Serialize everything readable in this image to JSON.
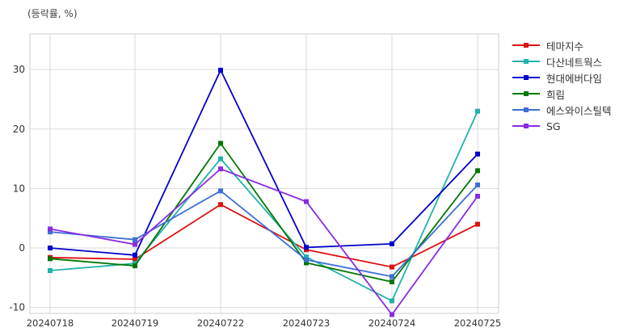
{
  "unit_label": "(등락률, %)",
  "chart_data": {
    "type": "line",
    "x": [
      "20240718",
      "20240719",
      "20240722",
      "20240723",
      "20240724",
      "20240725"
    ],
    "ylim": [
      -11,
      36
    ],
    "yticks": [
      -10,
      0,
      10,
      20,
      30
    ],
    "grid": true,
    "legend_position": "right",
    "series": [
      {
        "name": "테마지수",
        "color": "#dd1111",
        "values": [
          -1.6,
          -1.9,
          7.3,
          -0.3,
          -3.2,
          4.0
        ]
      },
      {
        "name": "다산네트웍스",
        "color": "#20b2aa",
        "values": [
          -3.8,
          -2.6,
          15.0,
          -1.5,
          -8.9,
          23.0
        ]
      },
      {
        "name": "현대에버다임",
        "color": "#0000cc",
        "values": [
          0.0,
          -1.2,
          29.9,
          0.1,
          0.7,
          15.8
        ]
      },
      {
        "name": "희림",
        "color": "#007700",
        "values": [
          -1.8,
          -3.0,
          17.6,
          -2.5,
          -5.7,
          13.0
        ]
      },
      {
        "name": "에스와이스틸텍",
        "color": "#3d6fd6",
        "values": [
          2.7,
          1.4,
          9.6,
          -2.0,
          -4.8,
          10.6
        ]
      },
      {
        "name": "SG",
        "color": "#8a2be2",
        "values": [
          3.2,
          0.6,
          13.3,
          7.8,
          -11.2,
          8.7
        ]
      }
    ]
  }
}
